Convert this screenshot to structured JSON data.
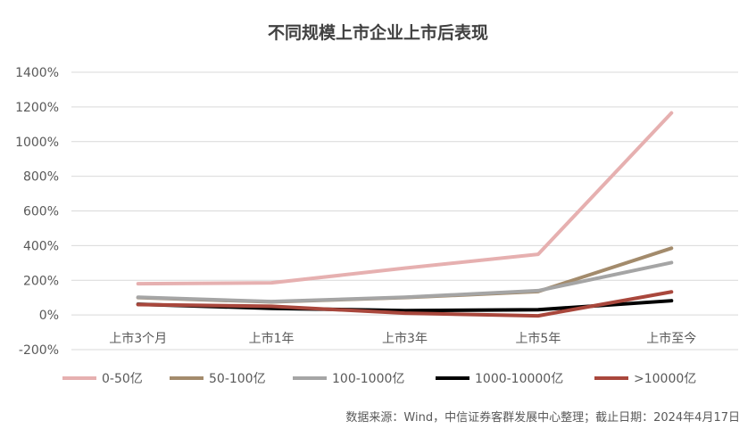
{
  "chart_data": {
    "type": "line",
    "title": "不同规模上市企业上市后表现",
    "categories": [
      "上市3个月",
      "上市1年",
      "上市3年",
      "上市5年",
      "上市至今"
    ],
    "y_ticks": [
      "1400%",
      "1200%",
      "1000%",
      "800%",
      "600%",
      "400%",
      "200%",
      "0%",
      "-200%"
    ],
    "ylim": [
      -200,
      1400
    ],
    "grid": true,
    "legend_position": "bottom",
    "series": [
      {
        "name": "0-50亿",
        "color": "#E6B0B0",
        "values": [
          180,
          185,
          270,
          350,
          1165
        ]
      },
      {
        "name": "50-100亿",
        "color": "#A38B6C",
        "values": [
          100,
          75,
          100,
          135,
          385
        ]
      },
      {
        "name": "100-1000亿",
        "color": "#A5A5A5",
        "values": [
          102,
          77,
          102,
          140,
          302
        ]
      },
      {
        "name": "1000-10000亿",
        "color": "#000000",
        "values": [
          62,
          38,
          25,
          30,
          82
        ]
      },
      {
        "name": ">10000亿",
        "color": "#A9473C",
        "values": [
          60,
          50,
          10,
          -5,
          133
        ]
      }
    ]
  },
  "source_note": "数据来源：Wind，中信证券客群发展中心整理；截止日期：2024年4月17日"
}
